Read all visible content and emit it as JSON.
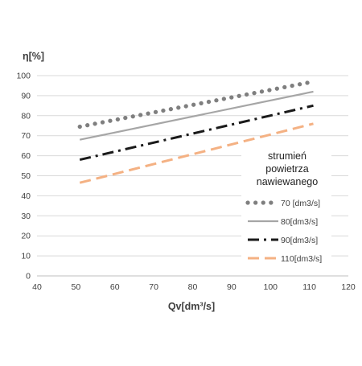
{
  "chart_data": {
    "type": "line",
    "xlabel": "Qv[dm³/s]",
    "ylabel": "η[%]",
    "xlim": [
      40,
      120
    ],
    "ylim": [
      0,
      100
    ],
    "xticks": [
      40,
      50,
      60,
      70,
      80,
      90,
      100,
      110,
      120
    ],
    "yticks": [
      0,
      10,
      20,
      30,
      40,
      50,
      60,
      70,
      80,
      90,
      100
    ],
    "grid": {
      "horizontal": true,
      "vertical": false
    },
    "legend": {
      "placement": "right",
      "title_lines": [
        "strumień",
        "powietrza",
        "nawiewanego"
      ]
    },
    "series": [
      {
        "name": "70 [dm3/s]",
        "style": "dotted",
        "color": "#7f7f7f",
        "x": [
          51,
          111
        ],
        "y": [
          74.5,
          97
        ]
      },
      {
        "name": "80[dm3/s]",
        "style": "solid",
        "color": "#a6a6a6",
        "x": [
          51,
          111
        ],
        "y": [
          68,
          92
        ]
      },
      {
        "name": "90[dm3/s]",
        "style": "dash-dot",
        "color": "#1a1a1a",
        "x": [
          51,
          111
        ],
        "y": [
          58,
          85
        ]
      },
      {
        "name": "110[dm3/s]",
        "style": "dashed",
        "color": "#f4b183",
        "x": [
          51,
          111
        ],
        "y": [
          46.5,
          76
        ]
      }
    ]
  }
}
